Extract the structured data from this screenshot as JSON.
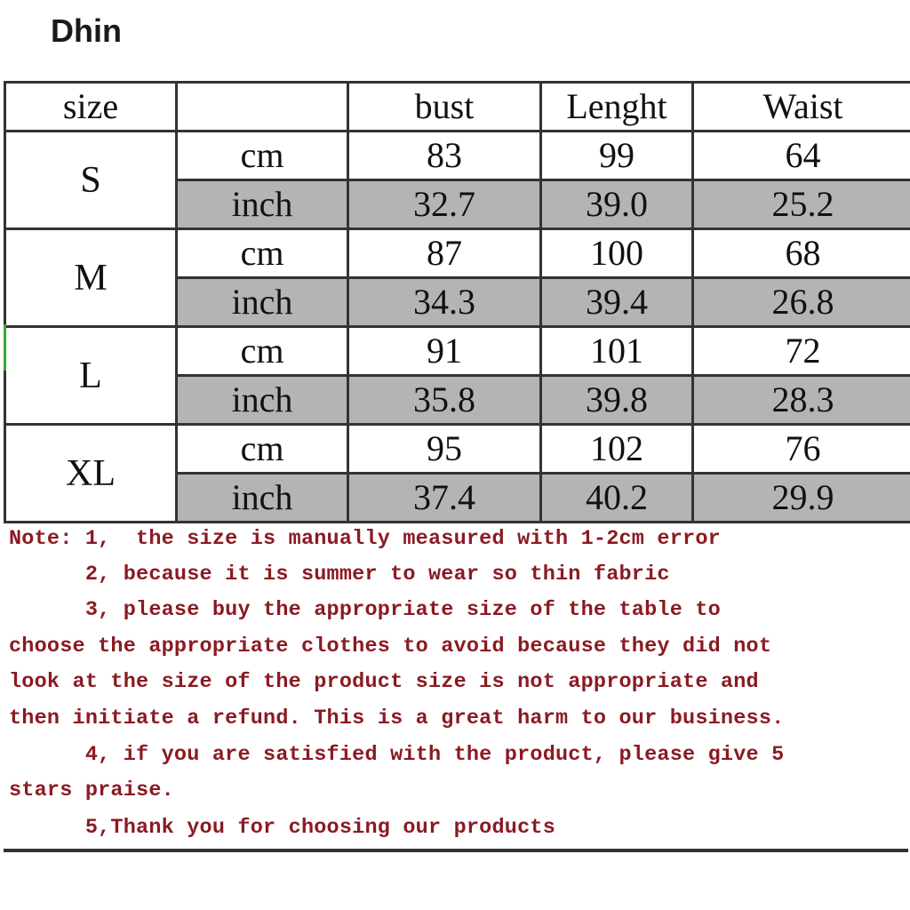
{
  "brand": "Dhin",
  "table": {
    "headers": [
      "size",
      "",
      "bust",
      "Lenght",
      "Waist"
    ],
    "rows": [
      {
        "size": "S",
        "cm": {
          "unit": "cm",
          "bust": "83",
          "length": "99",
          "waist": "64"
        },
        "inch": {
          "unit": "inch",
          "bust": "32.7",
          "length": "39.0",
          "waist": "25.2"
        }
      },
      {
        "size": "M",
        "cm": {
          "unit": "cm",
          "bust": "87",
          "length": "100",
          "waist": "68"
        },
        "inch": {
          "unit": "inch",
          "bust": "34.3",
          "length": "39.4",
          "waist": "26.8"
        }
      },
      {
        "size": "L",
        "cm": {
          "unit": "cm",
          "bust": "91",
          "length": "101",
          "waist": "72"
        },
        "inch": {
          "unit": "inch",
          "bust": "35.8",
          "length": "39.8",
          "waist": "28.3"
        }
      },
      {
        "size": "XL",
        "cm": {
          "unit": "cm",
          "bust": "95",
          "length": "102",
          "waist": "76"
        },
        "inch": {
          "unit": "inch",
          "bust": "37.4",
          "length": "40.2",
          "waist": "29.9"
        }
      }
    ]
  },
  "notes": [
    "Note: 1,  the size is manually measured with 1-2cm error",
    "      2, because it is summer to wear so thin fabric",
    "      3, please buy the appropriate size of the table to",
    "choose the appropriate clothes to avoid because they did not",
    "look at the size of the product size is not appropriate and",
    "then initiate a refund. This is a great harm to our business.",
    "      4, if you are satisfied with the product, please give 5",
    "stars praise.",
    "      5,Thank you for choosing our products"
  ],
  "colors": {
    "note_text": "#8b1a22",
    "inch_row_bg": "#b4b4b4"
  }
}
